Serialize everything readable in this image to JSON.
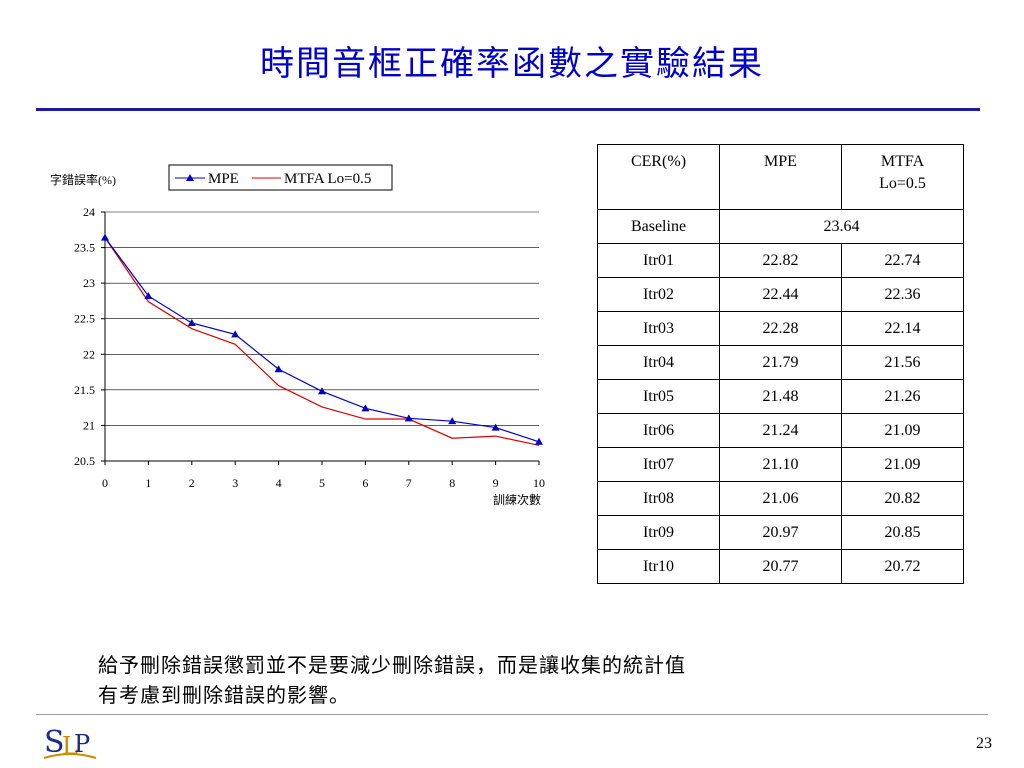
{
  "slide": {
    "title": "時間音框正確率函數之實驗結果",
    "note_line1": "給予刪除錯誤懲罰並不是要減少刪除錯誤，而是讓收集的統計值",
    "note_line2": "有考慮到刪除錯誤的影響。",
    "page_number": "23",
    "logo_text": "SLP"
  },
  "colors": {
    "title": "#0000cc",
    "mpe": "#0000cc",
    "mtfa": "#e00000"
  },
  "table": {
    "headers": [
      "CER(%)",
      "MPE",
      "MTFA Lo=0.5"
    ],
    "baseline": {
      "label": "Baseline",
      "value": "23.64"
    },
    "rows": [
      [
        "Itr01",
        "22.82",
        "22.74"
      ],
      [
        "Itr02",
        "22.44",
        "22.36"
      ],
      [
        "Itr03",
        "22.28",
        "22.14"
      ],
      [
        "Itr04",
        "21.79",
        "21.56"
      ],
      [
        "Itr05",
        "21.48",
        "21.26"
      ],
      [
        "Itr06",
        "21.24",
        "21.09"
      ],
      [
        "Itr07",
        "21.10",
        "21.09"
      ],
      [
        "Itr08",
        "21.06",
        "20.82"
      ],
      [
        "Itr09",
        "20.97",
        "20.85"
      ],
      [
        "Itr10",
        "20.77",
        "20.72"
      ]
    ]
  },
  "chart_data": {
    "type": "line",
    "title": "",
    "ylabel": "字錯誤率(%)",
    "xlabel": "訓練次數",
    "x": [
      0,
      1,
      2,
      3,
      4,
      5,
      6,
      7,
      8,
      9,
      10
    ],
    "xticks": [
      "0",
      "1",
      "2",
      "3",
      "4",
      "5",
      "6",
      "7",
      "8",
      "9",
      "10"
    ],
    "yticks": [
      "20.5",
      "21",
      "21.5",
      "22",
      "22.5",
      "23",
      "23.5",
      "24"
    ],
    "ylim": [
      20.5,
      24
    ],
    "xlim": [
      0,
      10
    ],
    "grid": "horizontal",
    "legend_position": "top",
    "series": [
      {
        "name": "MPE",
        "marker": "triangle",
        "color": "#0000cc",
        "values": [
          23.64,
          22.82,
          22.44,
          22.28,
          21.79,
          21.48,
          21.24,
          21.1,
          21.06,
          20.97,
          20.77
        ]
      },
      {
        "name": "MTFA Lo=0.5",
        "marker": "none",
        "color": "#e00000",
        "values": [
          23.64,
          22.74,
          22.36,
          22.14,
          21.56,
          21.26,
          21.09,
          21.09,
          20.82,
          20.85,
          20.72
        ]
      }
    ]
  }
}
